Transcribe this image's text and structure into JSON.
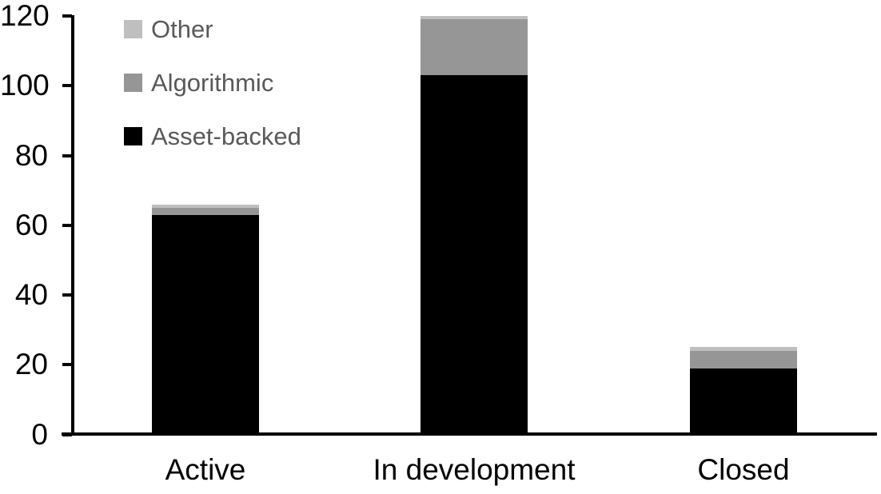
{
  "chart_data": {
    "type": "bar",
    "stacked": true,
    "title": "",
    "xlabel": "",
    "ylabel": "",
    "categories": [
      "Active",
      "In development",
      "Closed"
    ],
    "series": [
      {
        "name": "Asset-backed",
        "color": "#000000",
        "values": [
          63,
          103,
          19
        ]
      },
      {
        "name": "Algorithmic",
        "color": "#969696",
        "values": [
          2,
          16,
          5
        ]
      },
      {
        "name": "Other",
        "color": "#bfbfbf",
        "values": [
          1,
          1,
          1
        ]
      }
    ],
    "totals": [
      66,
      120,
      25
    ],
    "ylim": [
      0,
      120
    ],
    "yticks": [
      0,
      20,
      40,
      60,
      80,
      100,
      120
    ],
    "grid": false,
    "legend_position": "top-left",
    "legend_order_top_to_bottom": [
      "Other",
      "Algorithmic",
      "Asset-backed"
    ]
  },
  "colors": {
    "axis": "#000000",
    "legend_text": "#595959",
    "background": "#ffffff"
  }
}
